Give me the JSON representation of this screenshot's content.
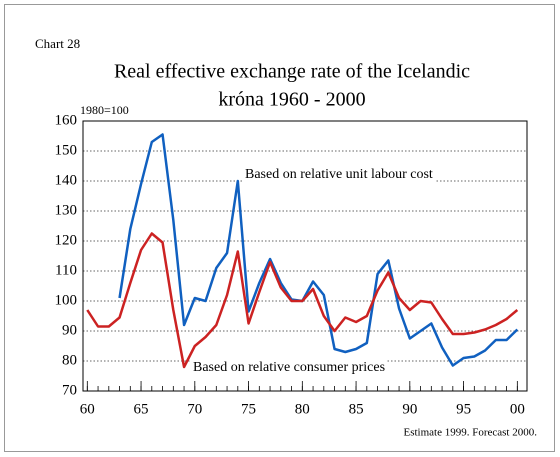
{
  "chart_data": {
    "type": "line",
    "label": "Chart 28",
    "title": [
      "Real effective exchange rate of the Icelandic",
      "króna 1960 - 2000"
    ],
    "y_axis_label": "1980=100",
    "footnote": "Estimate 1999. Forecast 2000.",
    "x": [
      1960,
      1961,
      1962,
      1963,
      1964,
      1965,
      1966,
      1967,
      1968,
      1969,
      1970,
      1971,
      1972,
      1973,
      1974,
      1975,
      1976,
      1977,
      1978,
      1979,
      1980,
      1981,
      1982,
      1983,
      1984,
      1985,
      1986,
      1987,
      1988,
      1989,
      1990,
      1991,
      1992,
      1993,
      1994,
      1995,
      1996,
      1997,
      1998,
      1999,
      2000
    ],
    "series": [
      {
        "name": "Based on relative unit labour cost",
        "color": "#1060c0",
        "values": [
          null,
          null,
          null,
          101,
          124,
          139,
          153,
          155.5,
          127,
          92,
          101,
          100,
          111,
          116,
          140,
          96.5,
          106,
          114,
          106,
          100.5,
          100,
          106.5,
          102,
          84,
          83,
          84,
          86,
          109,
          113.5,
          97.5,
          87.5,
          90,
          92.5,
          84.5,
          78.5,
          81,
          81.5,
          83.5,
          87,
          87,
          90.5
        ]
      },
      {
        "name": "Based on relative consumer prices",
        "color": "#cc2222",
        "values": [
          97,
          91.5,
          91.5,
          94.5,
          106,
          117,
          122.5,
          119.5,
          97,
          78,
          85,
          88,
          92,
          102,
          116.5,
          92.5,
          103,
          113,
          104.5,
          100,
          100,
          104,
          95,
          90,
          94.5,
          93,
          95,
          103.5,
          109.5,
          101,
          97,
          100,
          99.5,
          94,
          89,
          89,
          89.5,
          90.5,
          92,
          94,
          97
        ]
      }
    ],
    "xlim": [
      1959.6,
      2000.9
    ],
    "xticks": [
      {
        "value": 1960,
        "label": "60"
      },
      {
        "value": 1965,
        "label": "65"
      },
      {
        "value": 1970,
        "label": "70"
      },
      {
        "value": 1975,
        "label": "75"
      },
      {
        "value": 1980,
        "label": "80"
      },
      {
        "value": 1985,
        "label": "85"
      },
      {
        "value": 1990,
        "label": "90"
      },
      {
        "value": 1995,
        "label": "95"
      },
      {
        "value": 2000,
        "label": "00"
      }
    ],
    "xminorticks": [
      1960,
      1961,
      1962,
      1963,
      1964,
      1965,
      1966,
      1967,
      1968,
      1969,
      1970,
      1971,
      1972,
      1973,
      1974,
      1975,
      1976,
      1977,
      1978,
      1979,
      1980,
      1981,
      1982,
      1983,
      1984,
      1985,
      1986,
      1987,
      1988,
      1989,
      1990,
      1991,
      1992,
      1993,
      1994,
      1995,
      1996,
      1997,
      1998,
      1999,
      2000
    ],
    "ylim": [
      70,
      160
    ],
    "yticks": [
      70,
      80,
      90,
      100,
      110,
      120,
      130,
      140,
      150,
      160
    ],
    "grid": true
  }
}
